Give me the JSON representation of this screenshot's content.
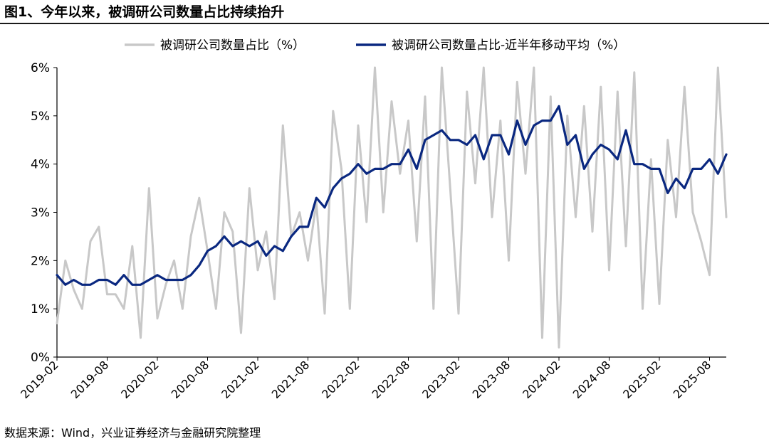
{
  "title": "图1、今年以来，被调研公司数量占比持续抬升",
  "source": "数据来源：Wind，兴业证券经济与金融研究院整理",
  "colors": {
    "ratio": "#c8c8c8",
    "ma": "#0a2880"
  },
  "chart_data": {
    "type": "line",
    "title": "图1、今年以来，被调研公司数量占比持续抬升",
    "xlabel": "",
    "ylabel": "",
    "ylim": [
      0,
      6
    ],
    "y_ticks": [
      "0%",
      "1%",
      "2%",
      "3%",
      "4%",
      "5%",
      "6%"
    ],
    "x_ticks": [
      "2019-02",
      "2019-08",
      "2020-02",
      "2020-08",
      "2021-02",
      "2021-08",
      "2022-02",
      "2022-08",
      "2023-02",
      "2023-08",
      "2024-02",
      "2024-08",
      "2025-02",
      "2025-08"
    ],
    "x_range": [
      "2019-02",
      "2025-10"
    ],
    "grid": false,
    "legend_position": "top",
    "series": [
      {
        "name": "被调研公司数量占比（%）",
        "color": "#c8c8c8",
        "points": [
          [
            "2019-02",
            0.7
          ],
          [
            "2019-03",
            2.0
          ],
          [
            "2019-04",
            1.4
          ],
          [
            "2019-05",
            1.0
          ],
          [
            "2019-06",
            2.4
          ],
          [
            "2019-07",
            2.7
          ],
          [
            "2019-08",
            1.3
          ],
          [
            "2019-09",
            1.3
          ],
          [
            "2019-10",
            1.0
          ],
          [
            "2019-11",
            2.3
          ],
          [
            "2019-12",
            0.4
          ],
          [
            "2020-01",
            3.5
          ],
          [
            "2020-02",
            0.8
          ],
          [
            "2020-03",
            1.5
          ],
          [
            "2020-04",
            2.0
          ],
          [
            "2020-05",
            1.0
          ],
          [
            "2020-06",
            2.5
          ],
          [
            "2020-07",
            3.3
          ],
          [
            "2020-08",
            2.2
          ],
          [
            "2020-09",
            1.0
          ],
          [
            "2020-10",
            3.0
          ],
          [
            "2020-11",
            2.6
          ],
          [
            "2020-12",
            0.5
          ],
          [
            "2021-01",
            3.5
          ],
          [
            "2021-02",
            1.8
          ],
          [
            "2021-03",
            2.6
          ],
          [
            "2021-04",
            1.2
          ],
          [
            "2021-05",
            4.8
          ],
          [
            "2021-06",
            2.5
          ],
          [
            "2021-07",
            3.0
          ],
          [
            "2021-08",
            2.0
          ],
          [
            "2021-09",
            3.2
          ],
          [
            "2021-10",
            0.9
          ],
          [
            "2021-11",
            5.1
          ],
          [
            "2021-12",
            3.9
          ],
          [
            "2022-01",
            1.0
          ],
          [
            "2022-02",
            4.8
          ],
          [
            "2022-03",
            2.8
          ],
          [
            "2022-04",
            6.0
          ],
          [
            "2022-05",
            3.0
          ],
          [
            "2022-06",
            5.3
          ],
          [
            "2022-07",
            3.8
          ],
          [
            "2022-08",
            4.9
          ],
          [
            "2022-09",
            2.4
          ],
          [
            "2022-10",
            5.4
          ],
          [
            "2022-11",
            1.0
          ],
          [
            "2022-12",
            6.0
          ],
          [
            "2023-01",
            3.5
          ],
          [
            "2023-02",
            0.9
          ],
          [
            "2023-03",
            5.5
          ],
          [
            "2023-04",
            3.6
          ],
          [
            "2023-05",
            6.0
          ],
          [
            "2023-06",
            2.9
          ],
          [
            "2023-07",
            4.9
          ],
          [
            "2023-08",
            2.0
          ],
          [
            "2023-09",
            5.7
          ],
          [
            "2023-10",
            3.8
          ],
          [
            "2023-11",
            6.0
          ],
          [
            "2023-12",
            0.4
          ],
          [
            "2024-01",
            5.4
          ],
          [
            "2024-02",
            0.2
          ],
          [
            "2024-03",
            5.0
          ],
          [
            "2024-04",
            2.9
          ],
          [
            "2024-05",
            5.2
          ],
          [
            "2024-06",
            2.6
          ],
          [
            "2024-07",
            5.6
          ],
          [
            "2024-08",
            1.8
          ],
          [
            "2024-09",
            5.5
          ],
          [
            "2024-10",
            2.3
          ],
          [
            "2024-11",
            5.9
          ],
          [
            "2024-12",
            1.0
          ],
          [
            "2025-01",
            4.1
          ],
          [
            "2025-02",
            1.1
          ],
          [
            "2025-03",
            4.5
          ],
          [
            "2025-04",
            2.9
          ],
          [
            "2025-05",
            5.6
          ],
          [
            "2025-06",
            3.0
          ],
          [
            "2025-07",
            2.4
          ],
          [
            "2025-08",
            1.7
          ],
          [
            "2025-09",
            6.0
          ],
          [
            "2025-10",
            2.9
          ]
        ]
      },
      {
        "name": "被调研公司数量占比-近半年移动平均（%）",
        "color": "#0a2880",
        "points": [
          [
            "2019-02",
            1.7
          ],
          [
            "2019-03",
            1.5
          ],
          [
            "2019-04",
            1.6
          ],
          [
            "2019-05",
            1.5
          ],
          [
            "2019-06",
            1.5
          ],
          [
            "2019-07",
            1.6
          ],
          [
            "2019-08",
            1.6
          ],
          [
            "2019-09",
            1.5
          ],
          [
            "2019-10",
            1.7
          ],
          [
            "2019-11",
            1.5
          ],
          [
            "2019-12",
            1.5
          ],
          [
            "2020-01",
            1.6
          ],
          [
            "2020-02",
            1.7
          ],
          [
            "2020-03",
            1.6
          ],
          [
            "2020-04",
            1.6
          ],
          [
            "2020-05",
            1.6
          ],
          [
            "2020-06",
            1.7
          ],
          [
            "2020-07",
            1.9
          ],
          [
            "2020-08",
            2.2
          ],
          [
            "2020-09",
            2.3
          ],
          [
            "2020-10",
            2.5
          ],
          [
            "2020-11",
            2.3
          ],
          [
            "2020-12",
            2.4
          ],
          [
            "2021-01",
            2.3
          ],
          [
            "2021-02",
            2.4
          ],
          [
            "2021-03",
            2.1
          ],
          [
            "2021-04",
            2.3
          ],
          [
            "2021-05",
            2.2
          ],
          [
            "2021-06",
            2.5
          ],
          [
            "2021-07",
            2.7
          ],
          [
            "2021-08",
            2.7
          ],
          [
            "2021-09",
            3.3
          ],
          [
            "2021-10",
            3.1
          ],
          [
            "2021-11",
            3.5
          ],
          [
            "2021-12",
            3.7
          ],
          [
            "2022-01",
            3.8
          ],
          [
            "2022-02",
            4.0
          ],
          [
            "2022-03",
            3.8
          ],
          [
            "2022-04",
            3.9
          ],
          [
            "2022-05",
            3.9
          ],
          [
            "2022-06",
            4.0
          ],
          [
            "2022-07",
            4.0
          ],
          [
            "2022-08",
            4.3
          ],
          [
            "2022-09",
            3.9
          ],
          [
            "2022-10",
            4.5
          ],
          [
            "2022-11",
            4.6
          ],
          [
            "2022-12",
            4.7
          ],
          [
            "2023-01",
            4.5
          ],
          [
            "2023-02",
            4.5
          ],
          [
            "2023-03",
            4.4
          ],
          [
            "2023-04",
            4.6
          ],
          [
            "2023-05",
            4.1
          ],
          [
            "2023-06",
            4.6
          ],
          [
            "2023-07",
            4.6
          ],
          [
            "2023-08",
            4.2
          ],
          [
            "2023-09",
            4.9
          ],
          [
            "2023-10",
            4.4
          ],
          [
            "2023-11",
            4.8
          ],
          [
            "2023-12",
            4.9
          ],
          [
            "2024-01",
            4.9
          ],
          [
            "2024-02",
            5.2
          ],
          [
            "2024-03",
            4.4
          ],
          [
            "2024-04",
            4.6
          ],
          [
            "2024-05",
            3.9
          ],
          [
            "2024-06",
            4.2
          ],
          [
            "2024-07",
            4.4
          ],
          [
            "2024-08",
            4.3
          ],
          [
            "2024-09",
            4.1
          ],
          [
            "2024-10",
            4.7
          ],
          [
            "2024-11",
            4.0
          ],
          [
            "2024-12",
            4.0
          ],
          [
            "2025-01",
            3.9
          ],
          [
            "2025-02",
            3.9
          ],
          [
            "2025-03",
            3.4
          ],
          [
            "2025-04",
            3.7
          ],
          [
            "2025-05",
            3.5
          ],
          [
            "2025-06",
            3.9
          ],
          [
            "2025-07",
            3.9
          ],
          [
            "2025-08",
            4.1
          ],
          [
            "2025-09",
            3.8
          ],
          [
            "2025-10",
            4.2
          ]
        ]
      }
    ]
  }
}
